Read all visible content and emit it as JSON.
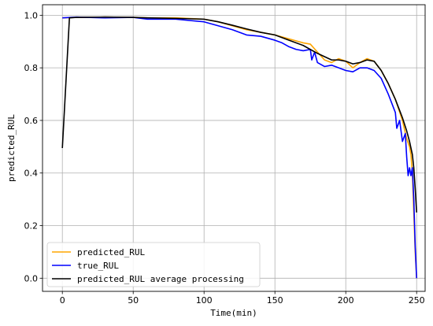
{
  "chart_data": {
    "type": "line",
    "title": "",
    "xlabel": "Time(min)",
    "ylabel": "predicted_RUL",
    "xlim": [
      -14,
      256
    ],
    "ylim": [
      -0.05,
      1.04
    ],
    "xticks": [
      0,
      50,
      100,
      150,
      200,
      250
    ],
    "yticks": [
      0.0,
      0.2,
      0.4,
      0.6,
      0.8,
      1.0
    ],
    "xtick_labels": [
      "0",
      "50",
      "100",
      "150",
      "200",
      "250"
    ],
    "ytick_labels": [
      "0.0",
      "0.2",
      "0.4",
      "0.6",
      "0.8",
      "1.0"
    ],
    "grid": true,
    "legend_position": "lower-left",
    "series": [
      {
        "name": "predicted_RUL",
        "color": "#FFA500",
        "x": [
          0,
          10,
          30,
          50,
          60,
          80,
          100,
          110,
          120,
          130,
          140,
          150,
          160,
          170,
          175,
          180,
          185,
          190,
          195,
          200,
          205,
          210,
          215,
          220,
          225,
          230,
          235,
          240,
          243,
          245,
          246,
          247,
          248,
          249,
          250
        ],
        "y": [
          0.99,
          0.992,
          0.993,
          0.992,
          0.99,
          0.99,
          0.985,
          0.975,
          0.96,
          0.945,
          0.935,
          0.925,
          0.91,
          0.895,
          0.89,
          0.86,
          0.83,
          0.82,
          0.835,
          0.825,
          0.8,
          0.82,
          0.835,
          0.825,
          0.79,
          0.74,
          0.68,
          0.6,
          0.53,
          0.5,
          0.47,
          0.4,
          0.25,
          0.1,
          0.0
        ]
      },
      {
        "name": "true_RUL",
        "color": "#0000FF",
        "x": [
          0,
          10,
          30,
          50,
          60,
          80,
          100,
          110,
          120,
          130,
          140,
          150,
          155,
          160,
          165,
          170,
          175,
          176,
          178,
          180,
          185,
          190,
          195,
          200,
          205,
          210,
          215,
          220,
          225,
          230,
          235,
          236,
          238,
          240,
          242,
          243,
          244,
          245,
          246,
          247,
          248,
          249,
          250
        ],
        "y": [
          0.99,
          0.993,
          0.99,
          0.992,
          0.985,
          0.985,
          0.975,
          0.96,
          0.945,
          0.925,
          0.92,
          0.905,
          0.895,
          0.88,
          0.87,
          0.865,
          0.87,
          0.83,
          0.86,
          0.82,
          0.805,
          0.81,
          0.8,
          0.79,
          0.785,
          0.8,
          0.8,
          0.79,
          0.76,
          0.7,
          0.63,
          0.57,
          0.6,
          0.52,
          0.55,
          0.46,
          0.39,
          0.42,
          0.39,
          0.42,
          0.3,
          0.12,
          0.0
        ]
      },
      {
        "name": "predicted_RUL average processing",
        "color": "#000000",
        "x": [
          0,
          5,
          10,
          30,
          50,
          60,
          80,
          100,
          110,
          120,
          130,
          140,
          150,
          160,
          170,
          180,
          190,
          195,
          200,
          205,
          210,
          215,
          220,
          225,
          230,
          235,
          240,
          243,
          245,
          247,
          248,
          249,
          250
        ],
        "y": [
          0.495,
          0.99,
          0.992,
          0.993,
          0.992,
          0.99,
          0.988,
          0.985,
          0.975,
          0.962,
          0.948,
          0.935,
          0.925,
          0.905,
          0.885,
          0.855,
          0.83,
          0.83,
          0.825,
          0.815,
          0.82,
          0.83,
          0.825,
          0.79,
          0.74,
          0.68,
          0.61,
          0.56,
          0.52,
          0.47,
          0.42,
          0.34,
          0.25
        ]
      }
    ]
  }
}
